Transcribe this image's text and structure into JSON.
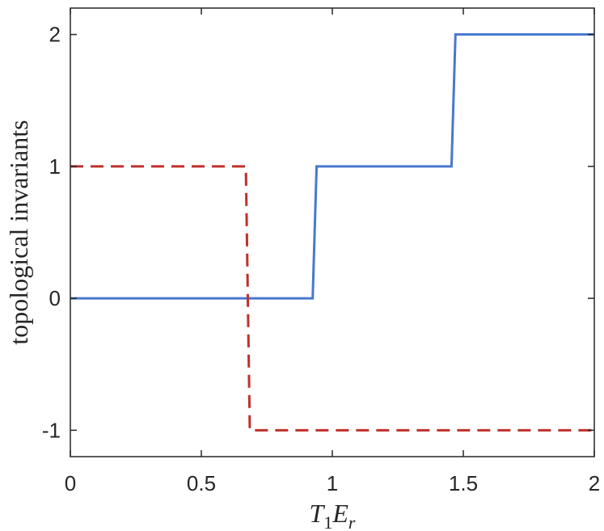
{
  "chart_data": {
    "type": "line",
    "title": "",
    "xlabel": {
      "main": "T",
      "sub1": "1",
      "main2": "E",
      "sub2": "r"
    },
    "ylabel": "topological invariants",
    "xlim": [
      0,
      2
    ],
    "ylim": [
      -1.2,
      2.2
    ],
    "xticks": [
      0,
      0.5,
      1,
      1.5,
      2
    ],
    "xtick_labels": [
      "0",
      "0.5",
      "1",
      "1.5",
      "2"
    ],
    "yticks": [
      -1,
      0,
      1,
      2
    ],
    "ytick_labels": [
      "-1",
      "0",
      "1",
      "2"
    ],
    "grid": false,
    "legend": null,
    "series": [
      {
        "style": "solid",
        "color": "#4878CF",
        "x": [
          0,
          0.925,
          0.94,
          1.455,
          1.47,
          2
        ],
        "y": [
          0,
          0,
          1,
          1,
          2,
          2
        ]
      },
      {
        "style": "dashed",
        "color": "#C0302B",
        "x": [
          0,
          0.67,
          0.685,
          2
        ],
        "y": [
          1,
          1,
          -1,
          -1
        ]
      }
    ]
  }
}
